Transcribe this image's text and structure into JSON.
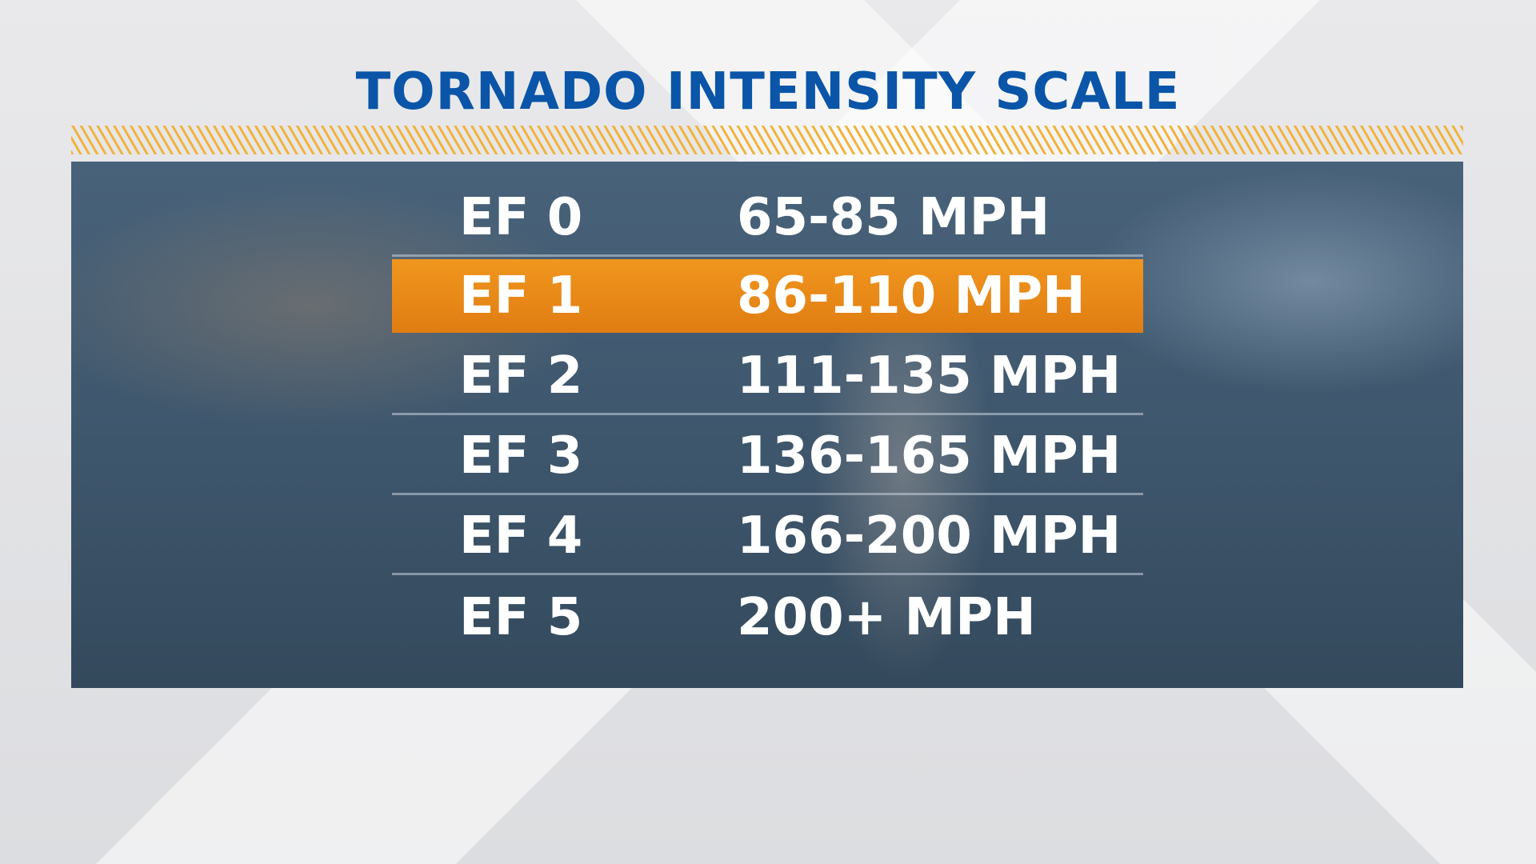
{
  "title": "TORNADO INTENSITY SCALE",
  "table": {
    "rows": [
      [
        "EF 0",
        "65-85 MPH"
      ],
      [
        "EF 1",
        "86-110 MPH"
      ],
      [
        "EF 2",
        "111-135 MPH"
      ],
      [
        "EF 3",
        "136-165 MPH"
      ],
      [
        "EF 4",
        "166-200 MPH"
      ],
      [
        "EF 5",
        "200+ MPH"
      ]
    ]
  }
}
